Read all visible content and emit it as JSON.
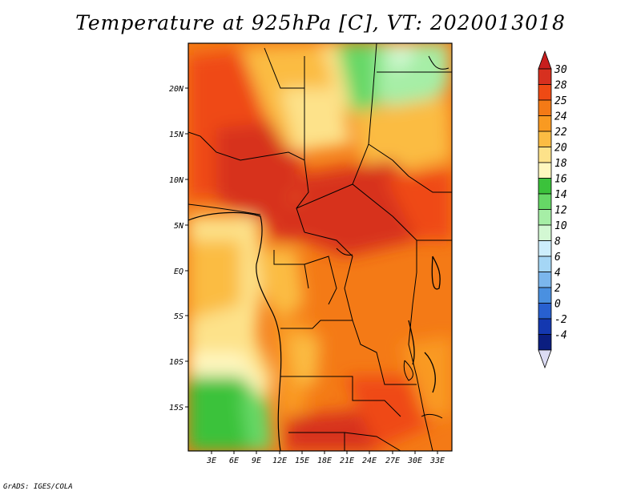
{
  "title": "Temperature at 925hPa [C], VT: 2020013018",
  "credit": "GrADS: IGES/COLA",
  "map": {
    "lat_ticks": [
      "20N",
      "15N",
      "10N",
      "5N",
      "EQ",
      "5S",
      "10S",
      "15S"
    ],
    "lon_ticks": [
      "3E",
      "6E",
      "9E",
      "12E",
      "15E",
      "18E",
      "21E",
      "24E",
      "27E",
      "30E",
      "33E"
    ],
    "lon_range": [
      0,
      35
    ],
    "lat_range": [
      -20,
      24
    ]
  },
  "colorbar": {
    "labels": [
      "30",
      "28",
      "25",
      "24",
      "22",
      "20",
      "18",
      "16",
      "14",
      "12",
      "10",
      "8",
      "6",
      "4",
      "2",
      "0",
      "-2",
      "-4"
    ],
    "colors": [
      "#d7301f",
      "#ef4a14",
      "#f47a16",
      "#f99a21",
      "#fbbc43",
      "#fde28a",
      "#fff7bf",
      "#3bc23b",
      "#66d866",
      "#a6eea6",
      "#d3f8d3",
      "#cdeefc",
      "#a5d6f5",
      "#7bb6ec",
      "#4a90e0",
      "#2860d0",
      "#1438b0",
      "#0b1e80",
      "#e6e6f8"
    ],
    "top_cap_color": "#c81e1e",
    "bottom_cap_color": "#dcdcf4"
  }
}
